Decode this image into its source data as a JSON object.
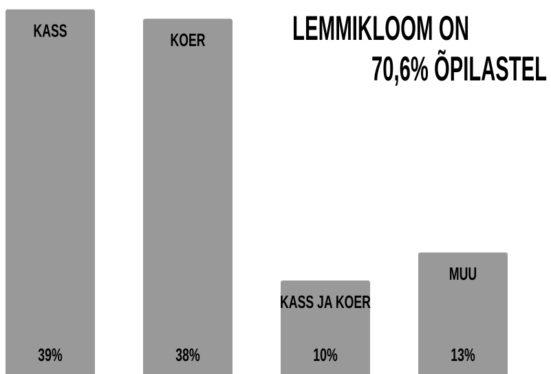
{
  "chart_data": {
    "type": "bar",
    "title": [
      "LEMMIKLOOM ON",
      "70,6% ÕPILASTEL"
    ],
    "categories": [
      "KASS",
      "KOER",
      "KASS JA KOER",
      "MUU"
    ],
    "values": [
      39,
      38,
      10,
      13
    ],
    "value_labels": [
      "39%",
      "38%",
      "10%",
      "13%"
    ],
    "color": "#999999"
  }
}
